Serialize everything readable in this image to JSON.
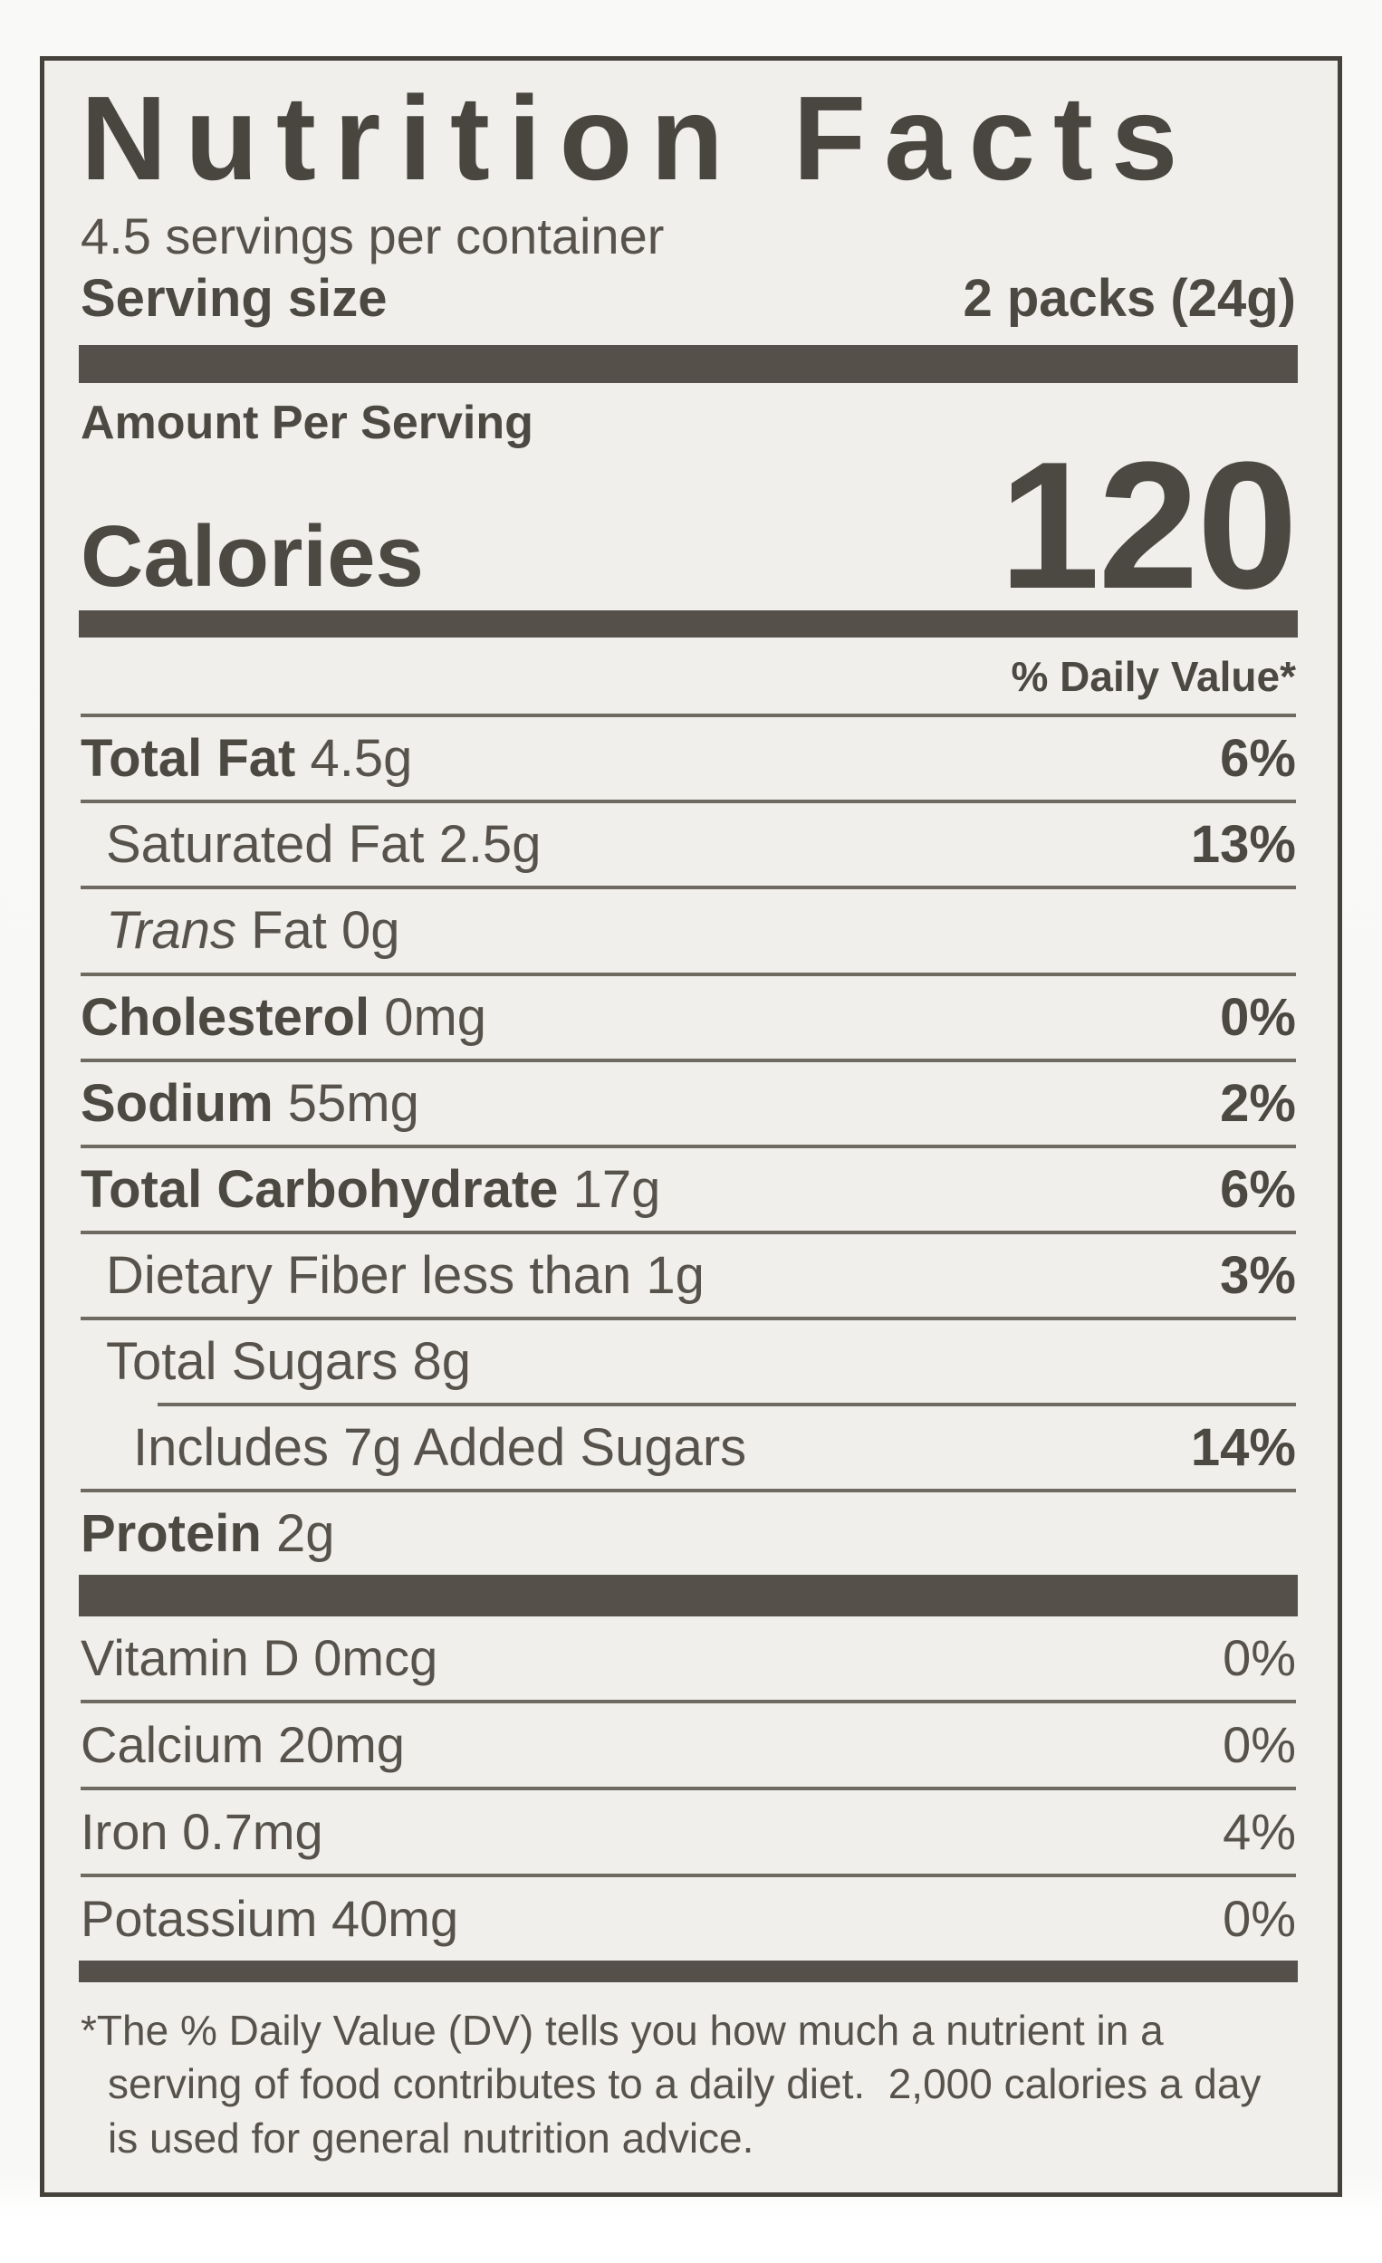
{
  "label": {
    "title": "Nutrition Facts",
    "servings_per_container": "4.5 servings per container",
    "serving_size": {
      "label": "Serving size",
      "value": "2 packs (24g)"
    },
    "amount_per_serving": "Amount Per Serving",
    "calories": {
      "label": "Calories",
      "value": "120"
    },
    "daily_value_header": "% Daily Value*",
    "nutrients": [
      {
        "name": "Total Fat",
        "amount": "4.5g",
        "daily_value": "6%"
      },
      {
        "name": "Saturated Fat",
        "amount": "2.5g",
        "daily_value": "13%"
      },
      {
        "name_italic": "Trans",
        "name": "Fat",
        "amount": "0g",
        "daily_value": ""
      },
      {
        "name": "Cholesterol",
        "amount": "0mg",
        "daily_value": "0%"
      },
      {
        "name": "Sodium",
        "amount": "55mg",
        "daily_value": "2%"
      },
      {
        "name": "Total Carbohydrate",
        "amount": "17g",
        "daily_value": "6%"
      },
      {
        "name": "Dietary Fiber",
        "amount": "less than 1g",
        "daily_value": "3%"
      },
      {
        "name": "Total Sugars",
        "amount": "8g",
        "daily_value": ""
      },
      {
        "name": "Includes 7g Added Sugars",
        "amount": "",
        "daily_value": "14%"
      },
      {
        "name": "Protein",
        "amount": "2g",
        "daily_value": ""
      }
    ],
    "vitamins": [
      {
        "name": "Vitamin D",
        "amount": "0mcg",
        "daily_value": "0%"
      },
      {
        "name": "Calcium",
        "amount": "20mg",
        "daily_value": "0%"
      },
      {
        "name": "Iron",
        "amount": "0.7mg",
        "daily_value": "4%"
      },
      {
        "name": "Potassium",
        "amount": "40mg",
        "daily_value": "0%"
      }
    ],
    "footnote": "*The % Daily Value (DV) tells you how much a nutrient in a serving of food contributes to a daily diet.  2,000 calories a day is used for general nutrition advice.",
    "colors": {
      "label_background": "#f1efeb",
      "text": "#55504a",
      "rule": "#6f6a61",
      "border": "#45423c"
    }
  }
}
